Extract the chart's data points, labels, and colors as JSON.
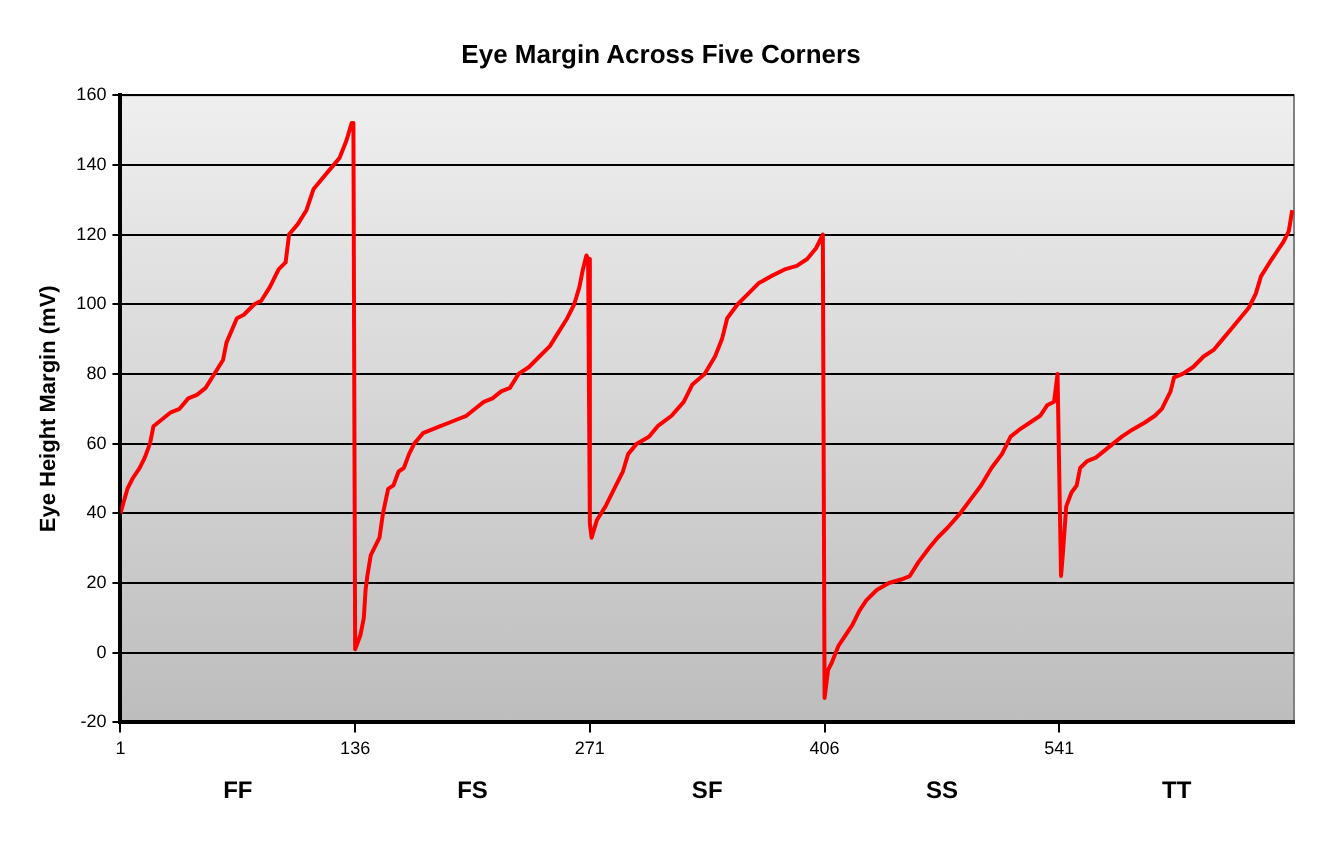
{
  "chart_data": {
    "type": "line",
    "title": "Eye Margin Across Five Corners",
    "ylabel": "Eye Height Margin (mV)",
    "annotations": [
      "FF",
      "FS",
      "SF",
      "SS",
      "TT"
    ],
    "xlim": [
      1,
      676
    ],
    "xticks": [
      1,
      136,
      271,
      406,
      541
    ],
    "ylim": [
      -20,
      160
    ],
    "yticks": [
      -20,
      0,
      20,
      40,
      60,
      80,
      100,
      120,
      140,
      160
    ],
    "grid": "y",
    "legend": false,
    "marker": "none",
    "line_style": "solid",
    "series": [
      {
        "color": "#ff0000",
        "x": [
          1,
          5,
          8,
          12,
          15,
          18,
          20,
          25,
          30,
          35,
          40,
          45,
          50,
          55,
          60,
          62,
          68,
          72,
          78,
          82,
          87,
          92,
          96,
          98,
          103,
          108,
          112,
          117,
          122,
          127,
          131,
          134,
          135,
          136,
          139,
          141,
          142,
          143,
          145,
          148,
          150,
          152,
          155,
          158,
          161,
          164,
          167,
          170,
          175,
          180,
          185,
          190,
          195,
          200,
          205,
          210,
          215,
          220,
          225,
          230,
          236,
          242,
          248,
          253,
          258,
          262,
          265,
          267,
          269,
          270,
          271,
          272,
          275,
          280,
          285,
          290,
          293,
          298,
          305,
          310,
          318,
          325,
          330,
          337,
          343,
          347,
          350,
          356,
          362,
          368,
          375,
          383,
          390,
          396,
          401,
          405,
          406,
          408,
          410,
          414,
          418,
          422,
          426,
          430,
          436,
          443,
          450,
          455,
          460,
          466,
          471,
          477,
          484,
          490,
          496,
          502,
          508,
          513,
          518,
          524,
          530,
          534,
          538,
          540,
          542,
          543,
          545,
          548,
          551,
          553,
          557,
          562,
          567,
          572,
          577,
          583,
          590,
          596,
          600,
          605,
          607,
          612,
          618,
          624,
          630,
          635,
          640,
          645,
          650,
          654,
          657,
          662,
          666,
          670,
          673,
          675
        ],
        "values": [
          40,
          47,
          50,
          53,
          56,
          60,
          65,
          67,
          69,
          70,
          73,
          74,
          76,
          80,
          84,
          89,
          96,
          97,
          100,
          101,
          105,
          110,
          112,
          120,
          123,
          127,
          133,
          136,
          139,
          142,
          147,
          152,
          152,
          1,
          5,
          10,
          18,
          22,
          28,
          31,
          33,
          40,
          47,
          48,
          52,
          53,
          57,
          60,
          63,
          64,
          65,
          66,
          67,
          68,
          70,
          72,
          73,
          75,
          76,
          80,
          82,
          85,
          88,
          92,
          96,
          100,
          105,
          110,
          114,
          113,
          37,
          33,
          38,
          42,
          47,
          52,
          57,
          60,
          62,
          65,
          68,
          72,
          77,
          80,
          85,
          90,
          96,
          100,
          103,
          106,
          108,
          110,
          111,
          113,
          116,
          120,
          -13,
          -5,
          -3,
          2,
          5,
          8,
          12,
          15,
          18,
          20,
          21,
          22,
          26,
          30,
          33,
          36,
          40,
          44,
          48,
          53,
          57,
          62,
          64,
          66,
          68,
          71,
          72,
          80,
          22,
          28,
          42,
          46,
          48,
          53,
          55,
          56,
          58,
          60,
          62,
          64,
          66,
          68,
          70,
          75,
          79,
          80,
          82,
          85,
          87,
          90,
          93,
          96,
          99,
          103,
          108,
          112,
          115,
          118,
          121,
          127
        ]
      }
    ]
  }
}
